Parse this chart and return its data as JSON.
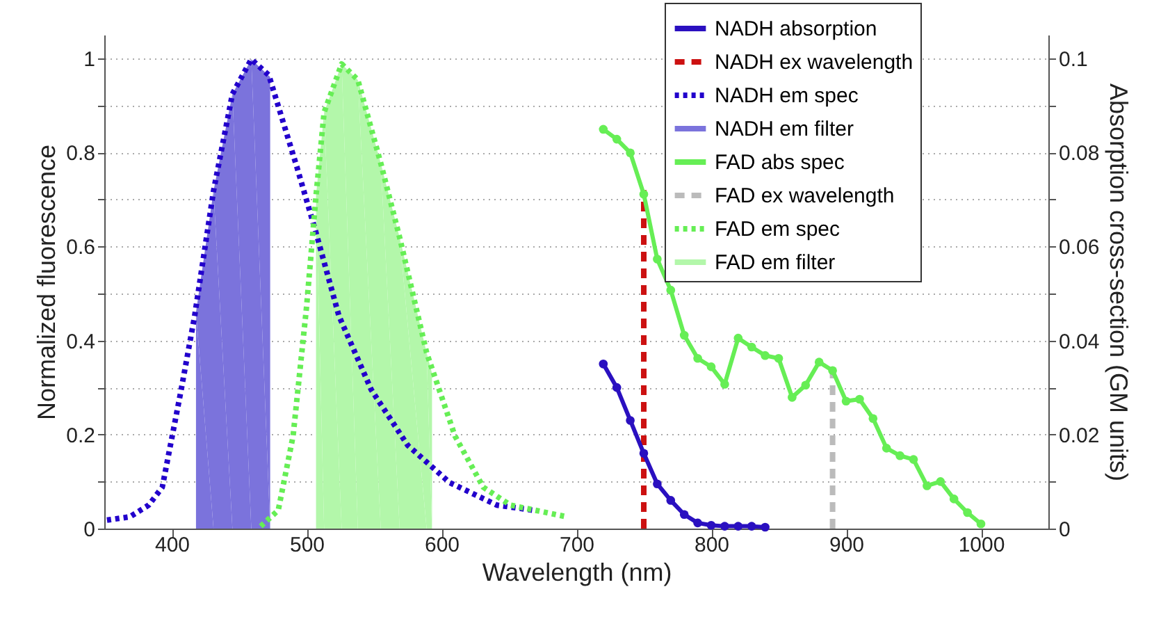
{
  "chart_data": {
    "type": "line",
    "xlabel": "Wavelength (nm)",
    "ylabel": "Normalized fluorescence",
    "y2label": "Absorption cross-section (GM units)",
    "xlim": [
      350,
      1050
    ],
    "xticks": [
      400,
      500,
      600,
      700,
      800,
      900,
      1000
    ],
    "ylim": [
      0,
      1.05
    ],
    "yticks": [
      0,
      {
        "value": 0.1,
        "label": null
      },
      0.2,
      {
        "value": 0.3,
        "label": null
      },
      0.4,
      {
        "value": 0.5,
        "label": null
      },
      0.6,
      {
        "value": 0.7,
        "label": null
      },
      0.8,
      {
        "value": 0.9,
        "label": null
      },
      1
    ],
    "y2lim": [
      0,
      0.105
    ],
    "y2ticks": [
      0,
      {
        "value": 0.01,
        "label": null
      },
      0.02,
      {
        "value": 0.03,
        "label": null
      },
      0.04,
      {
        "value": 0.05,
        "label": null
      },
      0.06,
      {
        "value": 0.07,
        "label": null
      },
      0.08,
      {
        "value": 0.09,
        "label": null
      },
      0.1
    ],
    "grid": "y",
    "legend": "top right",
    "series": [
      {
        "name": "NADH absorption",
        "type": "line",
        "axis": "y2",
        "color": "#2a10c0",
        "line_style": "solid",
        "marker": "circle",
        "x": [
          720,
          730,
          740,
          750,
          760,
          770,
          780,
          790,
          800,
          810,
          820,
          830,
          840
        ],
        "values": [
          0.035,
          0.03,
          0.023,
          0.016,
          0.0095,
          0.006,
          0.003,
          0.0012,
          0.0007,
          0.0005,
          0.0005,
          0.0005,
          0.0003
        ]
      },
      {
        "name": "NADH ex wavelength",
        "type": "line",
        "axis": "y2",
        "color": "#cc1111",
        "line_style": "dashed",
        "x": [
          750,
          750
        ],
        "values": [
          0,
          0.072
        ]
      },
      {
        "name": "NADH em spec",
        "type": "line",
        "color": "#2200cc",
        "line_style": "dotted",
        "x": [
          352,
          369,
          383,
          393,
          407,
          417,
          431,
          445,
          459,
          472,
          493,
          507,
          524,
          548,
          575,
          606,
          641,
          668
        ],
        "values": [
          0.018,
          0.025,
          0.05,
          0.088,
          0.295,
          0.452,
          0.718,
          0.924,
          0.998,
          0.964,
          0.767,
          0.629,
          0.452,
          0.295,
          0.177,
          0.098,
          0.05,
          0.039
        ]
      },
      {
        "name": "NADH em filter",
        "type": "area",
        "color": "#7b73dc",
        "x": [
          418,
          431,
          445,
          459,
          473
        ],
        "values": [
          0.46,
          0.718,
          0.924,
          0.998,
          0.96
        ]
      },
      {
        "name": "FAD abs spec",
        "type": "line",
        "axis": "y2",
        "color": "#66ee55",
        "line_style": "solid",
        "marker": "circle",
        "x": [
          720,
          730,
          740,
          750,
          760,
          770,
          780,
          790,
          800,
          810,
          820,
          830,
          840,
          850,
          860,
          870,
          880,
          890,
          900,
          910,
          920,
          930,
          940,
          950,
          960,
          970,
          980,
          990,
          1000
        ],
        "values": [
          0.0849,
          0.0828,
          0.0799,
          0.0711,
          0.0573,
          0.0507,
          0.0411,
          0.0362,
          0.0344,
          0.0307,
          0.0405,
          0.0386,
          0.0368,
          0.0362,
          0.0279,
          0.0305,
          0.0354,
          0.0336,
          0.0271,
          0.0275,
          0.0234,
          0.0171,
          0.0155,
          0.0147,
          0.0091,
          0.01,
          0.0063,
          0.0034,
          0.001
        ]
      },
      {
        "name": "FAD ex wavelength",
        "type": "line",
        "axis": "y2",
        "color": "#bbbbbb",
        "line_style": "dashed",
        "x": [
          890,
          890
        ],
        "values": [
          0,
          0.033
        ]
      },
      {
        "name": "FAD em spec",
        "type": "line",
        "color": "#66ee55",
        "line_style": "dotted",
        "x": [
          466,
          479,
          490,
          500,
          507,
          513,
          526,
          538,
          555,
          569,
          589,
          610,
          631,
          651,
          693
        ],
        "values": [
          0.005,
          0.039,
          0.197,
          0.472,
          0.708,
          0.885,
          0.988,
          0.954,
          0.777,
          0.619,
          0.374,
          0.197,
          0.088,
          0.05,
          0.025
        ]
      },
      {
        "name": "FAD em filter",
        "type": "area",
        "color": "#b3f7aa",
        "x": [
          507,
          513,
          526,
          538,
          555,
          569,
          589,
          593
        ],
        "values": [
          0.708,
          0.885,
          0.988,
          0.954,
          0.777,
          0.619,
          0.374,
          0.33
        ]
      }
    ]
  }
}
